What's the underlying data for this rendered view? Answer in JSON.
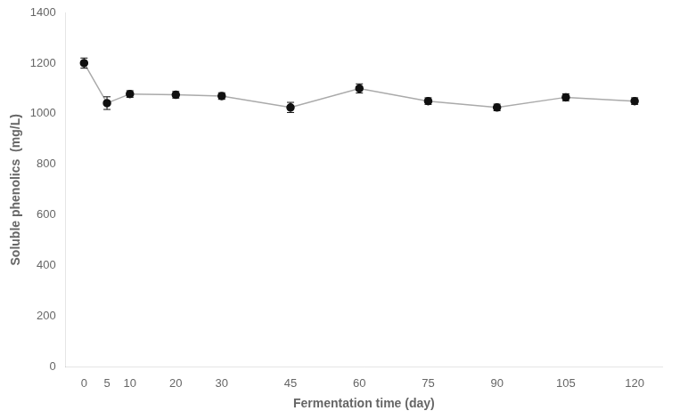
{
  "chart_data": {
    "type": "line",
    "xlabel": "Fermentation time (day)",
    "ylabel": "Soluble phenolics  (mg/L)",
    "x": [
      0,
      5,
      10,
      20,
      30,
      45,
      60,
      75,
      90,
      105,
      120
    ],
    "series": [
      {
        "color": "#aaaaaa",
        "colors": [
          "#111111",
          "#111111",
          "#111111",
          "#111111",
          "#111111",
          "#111111",
          "#111111",
          "#111111",
          "#111111",
          "#111111",
          "#111111"
        ],
        "marker": "circle",
        "values": [
          1200,
          1042,
          1078,
          1075,
          1070,
          1025,
          1100,
          1050,
          1025,
          1065,
          1050
        ],
        "yerr": [
          20,
          25,
          13,
          13,
          13,
          20,
          18,
          13,
          13,
          14,
          13
        ]
      }
    ],
    "xlim": [
      -4,
      126
    ],
    "xticks": [
      0,
      5,
      10,
      20,
      30,
      45,
      60,
      75,
      90,
      105,
      120
    ],
    "ylim": [
      0,
      1400
    ],
    "yticks": [
      0,
      200,
      400,
      600,
      800,
      1000,
      1200,
      1400
    ],
    "grid": false
  }
}
